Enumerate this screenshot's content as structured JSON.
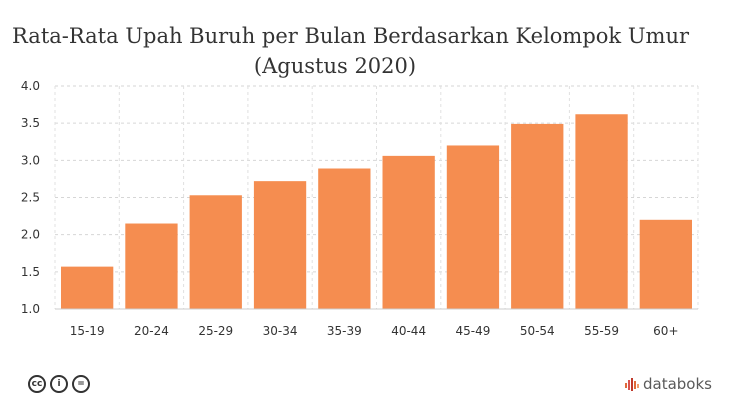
{
  "chart_data": {
    "type": "bar",
    "title": "Rata-Rata Upah Buruh per Bulan Berdasarkan Kelompok Umur",
    "subtitle": "(Agustus 2020)",
    "categories": [
      "15-19",
      "20-24",
      "25-29",
      "30-34",
      "35-39",
      "40-44",
      "45-49",
      "50-54",
      "55-59",
      "60+"
    ],
    "values": [
      1.57,
      2.15,
      2.53,
      2.72,
      2.89,
      3.06,
      3.2,
      3.49,
      3.62,
      2.2
    ],
    "yticks": [
      "1.0",
      "1.5",
      "2.0",
      "2.5",
      "3.0",
      "3.5",
      "4.0"
    ],
    "ylim": [
      1.0,
      4.0
    ],
    "grid": true,
    "bar_color": "#f58d50"
  },
  "footer": {
    "license_icons": [
      "cc-icon",
      "attribution-icon",
      "noderivs-icon"
    ],
    "brand": "databoks",
    "brand_color": "#c0392b"
  }
}
